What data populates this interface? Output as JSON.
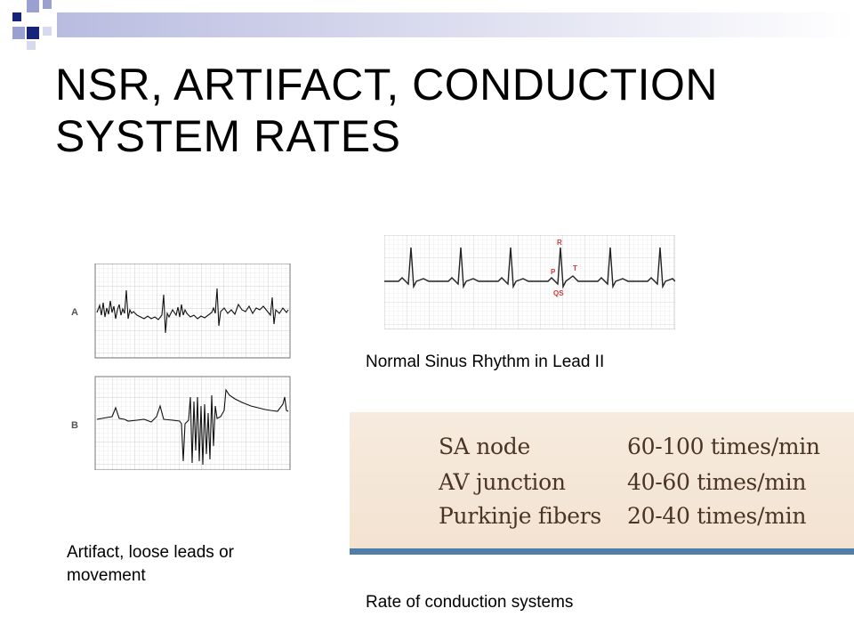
{
  "slide": {
    "title": "NSR, ARTIFACT, CONDUCTION SYSTEM RATES"
  },
  "nsr_strip": {
    "caption": "Normal Sinus Rhythm in Lead II",
    "wave_labels": {
      "r": "R",
      "p": "P",
      "t": "T",
      "qs": "QS"
    },
    "label_color": "#d23b3b"
  },
  "artifact_strip": {
    "caption": "Artifact, loose leads or movement",
    "panel_a_label": "A",
    "panel_b_label": "B"
  },
  "rates_table": {
    "caption": "Rate of conduction systems",
    "rows": [
      {
        "node": "SA node",
        "rate": "60-100 times/min"
      },
      {
        "node": "AV junction",
        "rate": "40-60 times/min"
      },
      {
        "node": "Purkinje fibers",
        "rate": "20-40 times/min"
      }
    ]
  },
  "colors": {
    "accent_navy": "#15237a",
    "accent_lavender": "#8f95c9",
    "rates_text": "#4a3424",
    "rates_bar": "#4f7fa8"
  }
}
